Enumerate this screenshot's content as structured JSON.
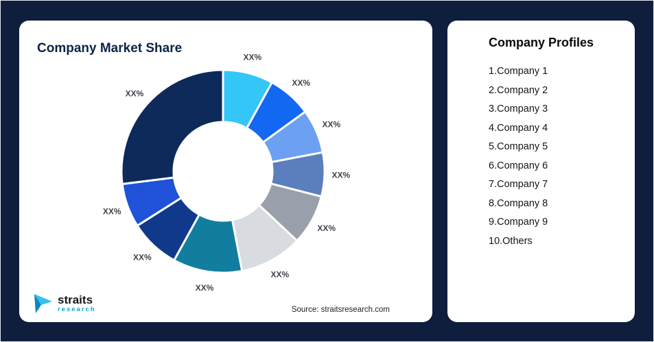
{
  "page": {
    "background": "#0E1E3C"
  },
  "left_card": {
    "title": "Company Market Share",
    "source": "Source: straitsresearch.com",
    "logo": {
      "text": "straits",
      "subtext": "research"
    }
  },
  "right_card": {
    "title": "Company Profiles",
    "items": [
      "1.Company 1",
      "2.Company 2",
      "3.Company 3",
      "4.Company 4",
      "5.Company 5",
      "6.Company 6",
      "7.Company 7",
      "8.Company 8",
      "9.Company 9",
      "10.Others"
    ]
  },
  "chart_data": {
    "type": "pie",
    "donut": true,
    "title": "Company Market Share",
    "labels": [
      "Company 1",
      "Company 2",
      "Company 3",
      "Company 4",
      "Company 5",
      "Company 6",
      "Company 7",
      "Company 8",
      "Company 9",
      "Others"
    ],
    "values": [
      8,
      7,
      7,
      7,
      8,
      10,
      11,
      8,
      7,
      27
    ],
    "values_note": "Numeric shares are not printed on the image; every slice is labeled XX%. Values above are estimated from arc angles.",
    "slice_labels": [
      "XX%",
      "XX%",
      "XX%",
      "XX%",
      "XX%",
      "XX%",
      "XX%",
      "XX%",
      "XX%",
      "XX%"
    ],
    "colors": [
      "#33C6F7",
      "#1268F0",
      "#6CA0F2",
      "#5B7EBD",
      "#99A0AB",
      "#D8DCE0",
      "#117E9F",
      "#10398C",
      "#1F52D9",
      "#0E2A5A"
    ],
    "label_position": "outside",
    "legend": "none",
    "start_angle_deg": 0,
    "direction": "clockwise"
  }
}
